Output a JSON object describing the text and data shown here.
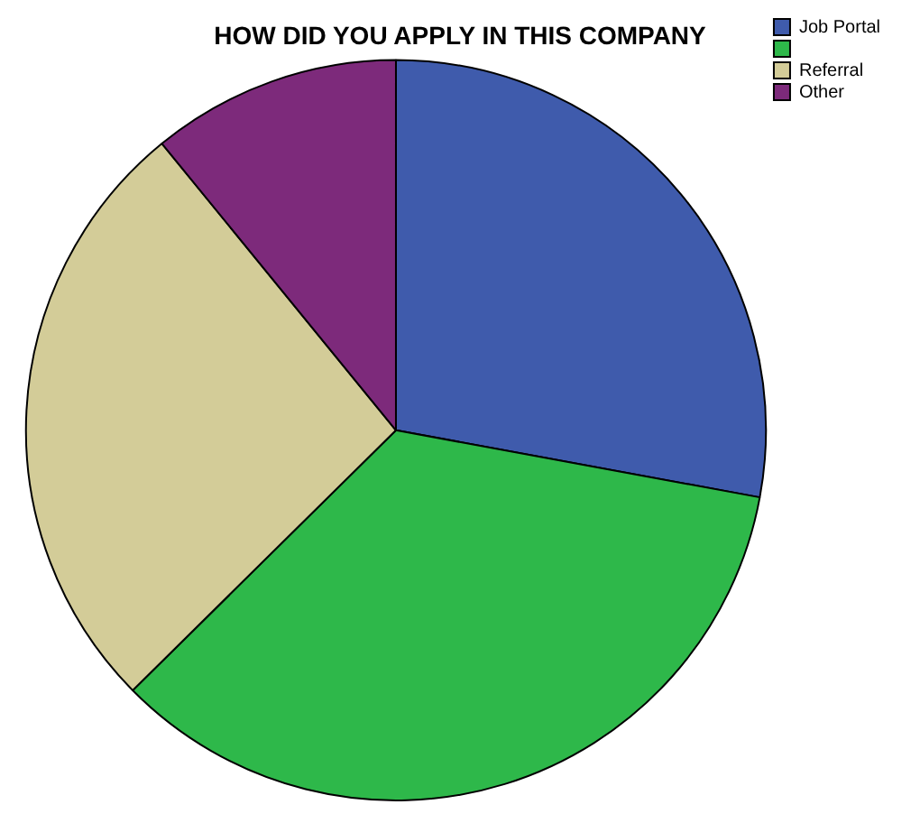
{
  "chart_data": {
    "type": "pie",
    "title": "HOW DID YOU APPLY IN THIS COMPANY",
    "categories": [
      "Job Portal",
      null,
      "Referral",
      "Other"
    ],
    "values": [
      27.9,
      34.7,
      26.5,
      10.9
    ],
    "colors": [
      "#3f5bac",
      "#2eb84a",
      "#d3cc98",
      "#7d2a7b"
    ],
    "legend": "top right"
  }
}
